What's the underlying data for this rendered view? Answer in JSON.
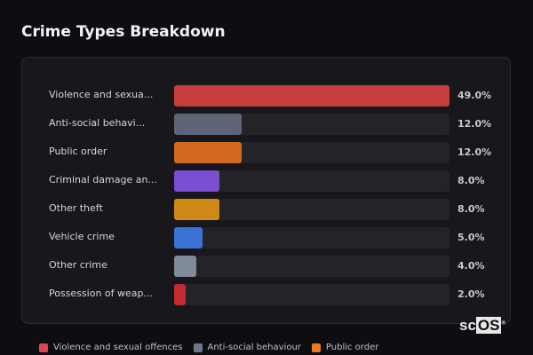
{
  "title": "Crime Types Breakdown",
  "chart_data": {
    "type": "bar",
    "orientation": "horizontal",
    "title": "Crime Types Breakdown",
    "xlim": [
      0,
      49
    ],
    "grid": false,
    "legend_placement": "bottom",
    "categories": [
      "Violence and sexua...",
      "Anti-social behavi...",
      "Public order",
      "Criminal damage an...",
      "Other theft",
      "Vehicle crime",
      "Other crime",
      "Possession of weap..."
    ],
    "values": [
      49.0,
      12.0,
      12.0,
      8.0,
      8.0,
      5.0,
      4.0,
      2.0
    ],
    "value_labels": [
      "49.0%",
      "12.0%",
      "12.0%",
      "8.0%",
      "8.0%",
      "5.0%",
      "4.0%",
      "2.0%"
    ],
    "colors": [
      "#c83c3e",
      "#5c6678",
      "#d2691e",
      "#7a4fd2",
      "#d08814",
      "#3a72d6",
      "#7f8a9a",
      "#c42a2e"
    ]
  },
  "legend": [
    {
      "label": "Violence and sexual offences",
      "color": "#e0474c"
    },
    {
      "label": "Anti-social behaviour",
      "color": "#6b7890"
    },
    {
      "label": "Public order",
      "color": "#f07a1e"
    }
  ],
  "logo": "scOS"
}
